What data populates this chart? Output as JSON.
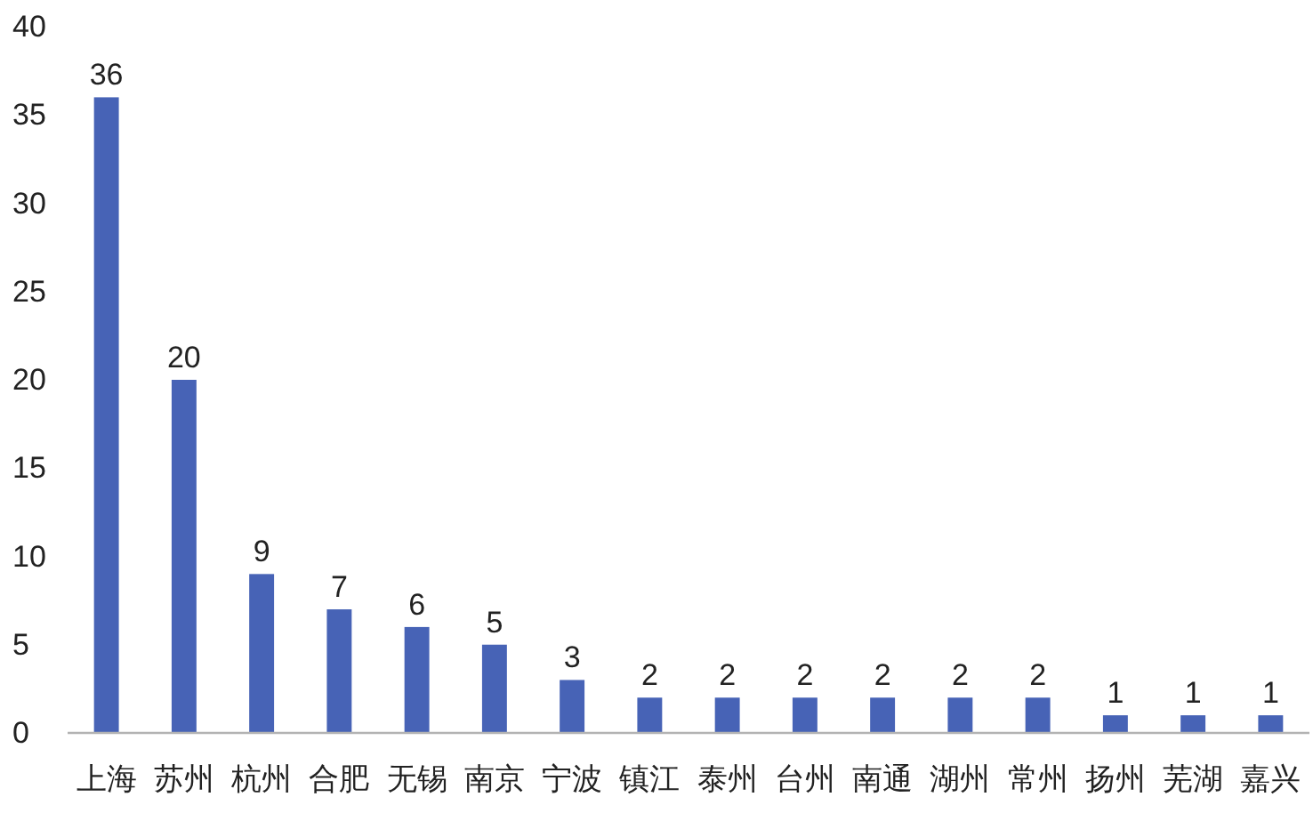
{
  "chart_data": {
    "type": "bar",
    "categories": [
      "上海",
      "苏州",
      "杭州",
      "合肥",
      "无锡",
      "南京",
      "宁波",
      "镇江",
      "泰州",
      "台州",
      "南通",
      "湖州",
      "常州",
      "扬州",
      "芜湖",
      "嘉兴"
    ],
    "values": [
      36,
      20,
      9,
      7,
      6,
      5,
      3,
      2,
      2,
      2,
      2,
      2,
      2,
      1,
      1,
      1
    ],
    "color": "#4763b6",
    "ylim": [
      0,
      40
    ],
    "yticks": [
      0,
      5,
      10,
      15,
      20,
      25,
      30,
      35,
      40
    ],
    "data_labels": true
  }
}
